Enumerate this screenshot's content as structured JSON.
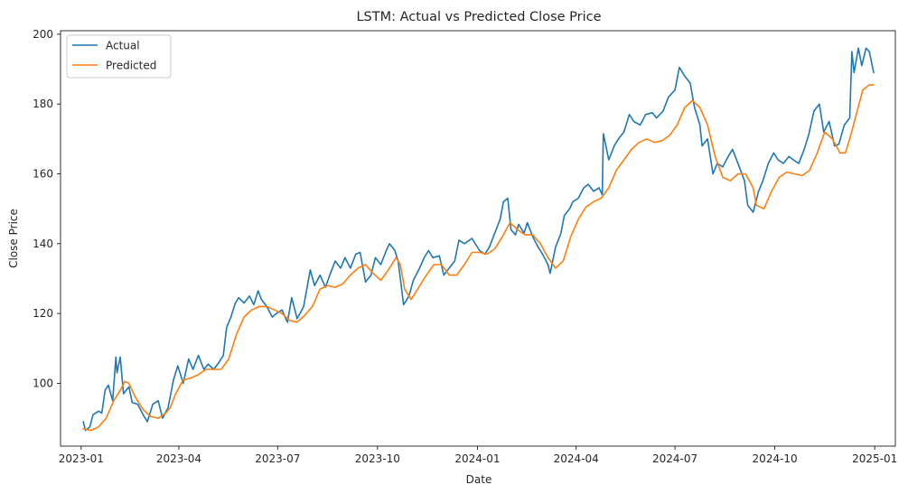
{
  "chart_data": {
    "type": "line",
    "title": "LSTM: Actual vs Predicted Close Price",
    "xlabel": "Date",
    "ylabel": "Close Price",
    "x_ticks": [
      "2023-01",
      "2023-04",
      "2023-07",
      "2023-10",
      "2024-01",
      "2024-04",
      "2024-07",
      "2024-10",
      "2025-01"
    ],
    "y_ticks": [
      100,
      120,
      140,
      160,
      180,
      200
    ],
    "xlim": [
      "2022-12-13",
      "2025-01-20"
    ],
    "ylim": [
      82,
      201
    ],
    "grid": false,
    "legend": {
      "placement": "upper-left"
    },
    "series": [
      {
        "name": "Actual",
        "color": "#1f77b4",
        "points": [
          [
            "2023-01-03",
            89
          ],
          [
            "2023-01-05",
            86.5
          ],
          [
            "2023-01-09",
            87.5
          ],
          [
            "2023-01-12",
            91
          ],
          [
            "2023-01-17",
            92
          ],
          [
            "2023-01-20",
            91.5
          ],
          [
            "2023-01-23",
            98
          ],
          [
            "2023-01-26",
            99.5
          ],
          [
            "2023-01-30",
            95
          ],
          [
            "2023-02-02",
            107.5
          ],
          [
            "2023-02-03",
            103
          ],
          [
            "2023-02-06",
            107.5
          ],
          [
            "2023-02-09",
            97
          ],
          [
            "2023-02-14",
            99
          ],
          [
            "2023-02-17",
            94.5
          ],
          [
            "2023-02-22",
            94
          ],
          [
            "2023-02-28",
            90.5
          ],
          [
            "2023-03-03",
            89
          ],
          [
            "2023-03-08",
            94
          ],
          [
            "2023-03-13",
            95
          ],
          [
            "2023-03-17",
            90
          ],
          [
            "2023-03-22",
            93
          ],
          [
            "2023-03-27",
            101
          ],
          [
            "2023-03-31",
            105
          ],
          [
            "2023-04-05",
            100
          ],
          [
            "2023-04-10",
            107
          ],
          [
            "2023-04-14",
            104
          ],
          [
            "2023-04-19",
            108
          ],
          [
            "2023-04-24",
            104
          ],
          [
            "2023-04-28",
            105.5
          ],
          [
            "2023-05-03",
            104
          ],
          [
            "2023-05-08",
            106
          ],
          [
            "2023-05-12",
            108
          ],
          [
            "2023-05-15",
            116
          ],
          [
            "2023-05-19",
            119
          ],
          [
            "2023-05-23",
            123
          ],
          [
            "2023-05-26",
            124.5
          ],
          [
            "2023-05-31",
            123
          ],
          [
            "2023-06-05",
            125
          ],
          [
            "2023-06-09",
            122.5
          ],
          [
            "2023-06-13",
            126.5
          ],
          [
            "2023-06-16",
            124
          ],
          [
            "2023-06-21",
            122
          ],
          [
            "2023-06-26",
            119
          ],
          [
            "2023-06-30",
            120
          ],
          [
            "2023-07-05",
            121
          ],
          [
            "2023-07-10",
            117.5
          ],
          [
            "2023-07-14",
            124.5
          ],
          [
            "2023-07-19",
            118.5
          ],
          [
            "2023-07-25",
            122
          ],
          [
            "2023-07-31",
            132.5
          ],
          [
            "2023-08-04",
            128
          ],
          [
            "2023-08-09",
            131
          ],
          [
            "2023-08-14",
            127.5
          ],
          [
            "2023-08-18",
            131
          ],
          [
            "2023-08-23",
            135
          ],
          [
            "2023-08-28",
            133
          ],
          [
            "2023-09-01",
            136
          ],
          [
            "2023-09-06",
            133
          ],
          [
            "2023-09-11",
            137
          ],
          [
            "2023-09-15",
            137.5
          ],
          [
            "2023-09-20",
            129
          ],
          [
            "2023-09-25",
            131
          ],
          [
            "2023-09-29",
            136
          ],
          [
            "2023-10-04",
            134
          ],
          [
            "2023-10-09",
            138
          ],
          [
            "2023-10-12",
            140
          ],
          [
            "2023-10-17",
            138
          ],
          [
            "2023-10-20",
            135
          ],
          [
            "2023-10-25",
            122.5
          ],
          [
            "2023-10-30",
            125
          ],
          [
            "2023-11-03",
            129.5
          ],
          [
            "2023-11-08",
            132.5
          ],
          [
            "2023-11-13",
            136
          ],
          [
            "2023-11-17",
            138
          ],
          [
            "2023-11-21",
            136
          ],
          [
            "2023-11-27",
            136.5
          ],
          [
            "2023-12-01",
            131
          ],
          [
            "2023-12-06",
            133
          ],
          [
            "2023-12-11",
            135
          ],
          [
            "2023-12-15",
            141
          ],
          [
            "2023-12-20",
            140
          ],
          [
            "2023-12-27",
            141.5
          ],
          [
            "2024-01-03",
            138
          ],
          [
            "2024-01-08",
            137
          ],
          [
            "2024-01-12",
            139
          ],
          [
            "2024-01-17",
            143
          ],
          [
            "2024-01-22",
            147
          ],
          [
            "2024-01-25",
            152
          ],
          [
            "2024-01-29",
            153
          ],
          [
            "2024-02-01",
            144
          ],
          [
            "2024-02-05",
            142.5
          ],
          [
            "2024-02-08",
            145.5
          ],
          [
            "2024-02-13",
            143
          ],
          [
            "2024-02-16",
            146
          ],
          [
            "2024-02-21",
            142
          ],
          [
            "2024-02-26",
            139
          ],
          [
            "2024-03-01",
            137
          ],
          [
            "2024-03-06",
            134
          ],
          [
            "2024-03-08",
            131.5
          ],
          [
            "2024-03-13",
            139
          ],
          [
            "2024-03-18",
            143
          ],
          [
            "2024-03-21",
            148
          ],
          [
            "2024-03-26",
            150
          ],
          [
            "2024-03-29",
            152
          ],
          [
            "2024-04-03",
            153
          ],
          [
            "2024-04-08",
            156
          ],
          [
            "2024-04-12",
            157
          ],
          [
            "2024-04-17",
            155
          ],
          [
            "2024-04-22",
            156
          ],
          [
            "2024-04-25",
            154
          ],
          [
            "2024-04-26",
            171.5
          ],
          [
            "2024-05-01",
            164
          ],
          [
            "2024-05-06",
            168
          ],
          [
            "2024-05-10",
            170
          ],
          [
            "2024-05-15",
            172
          ],
          [
            "2024-05-20",
            177
          ],
          [
            "2024-05-24",
            175
          ],
          [
            "2024-05-30",
            174
          ],
          [
            "2024-06-04",
            177
          ],
          [
            "2024-06-10",
            177.5
          ],
          [
            "2024-06-14",
            176
          ],
          [
            "2024-06-20",
            178
          ],
          [
            "2024-06-25",
            182
          ],
          [
            "2024-07-01",
            184
          ],
          [
            "2024-07-05",
            190.5
          ],
          [
            "2024-07-10",
            188
          ],
          [
            "2024-07-15",
            186
          ],
          [
            "2024-07-19",
            179
          ],
          [
            "2024-07-24",
            174
          ],
          [
            "2024-07-26",
            168
          ],
          [
            "2024-07-31",
            170
          ],
          [
            "2024-08-05",
            160
          ],
          [
            "2024-08-09",
            163
          ],
          [
            "2024-08-14",
            162
          ],
          [
            "2024-08-19",
            165
          ],
          [
            "2024-08-23",
            167
          ],
          [
            "2024-08-28",
            163
          ],
          [
            "2024-09-03",
            158
          ],
          [
            "2024-09-06",
            151
          ],
          [
            "2024-09-11",
            149
          ],
          [
            "2024-09-16",
            155
          ],
          [
            "2024-09-20",
            158
          ],
          [
            "2024-09-25",
            163
          ],
          [
            "2024-09-30",
            166
          ],
          [
            "2024-10-04",
            164
          ],
          [
            "2024-10-09",
            163
          ],
          [
            "2024-10-14",
            165
          ],
          [
            "2024-10-18",
            164
          ],
          [
            "2024-10-23",
            163
          ],
          [
            "2024-10-28",
            167
          ],
          [
            "2024-11-01",
            171
          ],
          [
            "2024-11-06",
            178
          ],
          [
            "2024-11-11",
            180
          ],
          [
            "2024-11-15",
            172
          ],
          [
            "2024-11-20",
            175
          ],
          [
            "2024-11-25",
            168
          ],
          [
            "2024-11-29",
            168.5
          ],
          [
            "2024-12-04",
            174
          ],
          [
            "2024-12-09",
            176
          ],
          [
            "2024-12-11",
            195
          ],
          [
            "2024-12-13",
            189
          ],
          [
            "2024-12-17",
            196
          ],
          [
            "2024-12-20",
            191
          ],
          [
            "2024-12-24",
            196
          ],
          [
            "2024-12-27",
            195
          ],
          [
            "2024-12-31",
            189
          ]
        ]
      },
      {
        "name": "Predicted",
        "color": "#ff7f0e",
        "points": [
          [
            "2023-01-03",
            87
          ],
          [
            "2023-01-10",
            86.5
          ],
          [
            "2023-01-17",
            87.5
          ],
          [
            "2023-01-24",
            90
          ],
          [
            "2023-01-31",
            95
          ],
          [
            "2023-02-07",
            98.5
          ],
          [
            "2023-02-10",
            100.5
          ],
          [
            "2023-02-14",
            100
          ],
          [
            "2023-02-20",
            96
          ],
          [
            "2023-02-27",
            92.5
          ],
          [
            "2023-03-06",
            90.5
          ],
          [
            "2023-03-13",
            90
          ],
          [
            "2023-03-20",
            91.5
          ],
          [
            "2023-03-24",
            93
          ],
          [
            "2023-03-29",
            97
          ],
          [
            "2023-04-05",
            101
          ],
          [
            "2023-04-12",
            101.5
          ],
          [
            "2023-04-19",
            102.5
          ],
          [
            "2023-04-26",
            104
          ],
          [
            "2023-05-03",
            104
          ],
          [
            "2023-05-10",
            104
          ],
          [
            "2023-05-17",
            107
          ],
          [
            "2023-05-24",
            114
          ],
          [
            "2023-05-31",
            119
          ],
          [
            "2023-06-07",
            121
          ],
          [
            "2023-06-14",
            122
          ],
          [
            "2023-06-21",
            122
          ],
          [
            "2023-06-28",
            121
          ],
          [
            "2023-07-05",
            120
          ],
          [
            "2023-07-12",
            118
          ],
          [
            "2023-07-19",
            117.5
          ],
          [
            "2023-07-26",
            119.5
          ],
          [
            "2023-08-02",
            122
          ],
          [
            "2023-08-09",
            127
          ],
          [
            "2023-08-16",
            128
          ],
          [
            "2023-08-23",
            127.5
          ],
          [
            "2023-08-30",
            128.5
          ],
          [
            "2023-09-06",
            131
          ],
          [
            "2023-09-13",
            133
          ],
          [
            "2023-09-20",
            134
          ],
          [
            "2023-09-27",
            131.5
          ],
          [
            "2023-10-04",
            129.5
          ],
          [
            "2023-10-11",
            132.5
          ],
          [
            "2023-10-18",
            136
          ],
          [
            "2023-10-22",
            134
          ],
          [
            "2023-10-26",
            127
          ],
          [
            "2023-11-01",
            124
          ],
          [
            "2023-11-08",
            127.5
          ],
          [
            "2023-11-15",
            131
          ],
          [
            "2023-11-22",
            134
          ],
          [
            "2023-11-29",
            134
          ],
          [
            "2023-12-06",
            131
          ],
          [
            "2023-12-13",
            131
          ],
          [
            "2023-12-20",
            134
          ],
          [
            "2023-12-27",
            137.5
          ],
          [
            "2024-01-03",
            137.5
          ],
          [
            "2024-01-10",
            137
          ],
          [
            "2024-01-17",
            138.5
          ],
          [
            "2024-01-24",
            142
          ],
          [
            "2024-01-31",
            146
          ],
          [
            "2024-02-07",
            144
          ],
          [
            "2024-02-14",
            142.5
          ],
          [
            "2024-02-21",
            142.5
          ],
          [
            "2024-02-28",
            140
          ],
          [
            "2024-03-06",
            136
          ],
          [
            "2024-03-13",
            133
          ],
          [
            "2024-03-20",
            135
          ],
          [
            "2024-03-27",
            142
          ],
          [
            "2024-04-03",
            147
          ],
          [
            "2024-04-10",
            150.5
          ],
          [
            "2024-04-17",
            152
          ],
          [
            "2024-04-24",
            153
          ],
          [
            "2024-05-01",
            156
          ],
          [
            "2024-05-08",
            161
          ],
          [
            "2024-05-15",
            164
          ],
          [
            "2024-05-22",
            167
          ],
          [
            "2024-05-29",
            169
          ],
          [
            "2024-06-05",
            170
          ],
          [
            "2024-06-12",
            169
          ],
          [
            "2024-06-19",
            169.5
          ],
          [
            "2024-06-26",
            171
          ],
          [
            "2024-07-03",
            174
          ],
          [
            "2024-07-10",
            179
          ],
          [
            "2024-07-17",
            181
          ],
          [
            "2024-07-24",
            179
          ],
          [
            "2024-07-31",
            174
          ],
          [
            "2024-08-07",
            165
          ],
          [
            "2024-08-14",
            159
          ],
          [
            "2024-08-21",
            158
          ],
          [
            "2024-08-28",
            160
          ],
          [
            "2024-09-04",
            160
          ],
          [
            "2024-09-11",
            156
          ],
          [
            "2024-09-14",
            151
          ],
          [
            "2024-09-21",
            150
          ],
          [
            "2024-09-28",
            155
          ],
          [
            "2024-10-05",
            159
          ],
          [
            "2024-10-12",
            160.5
          ],
          [
            "2024-10-19",
            160
          ],
          [
            "2024-10-26",
            159.5
          ],
          [
            "2024-11-02",
            161
          ],
          [
            "2024-11-09",
            166
          ],
          [
            "2024-11-16",
            172
          ],
          [
            "2024-11-23",
            170
          ],
          [
            "2024-11-30",
            166
          ],
          [
            "2024-12-05",
            166
          ],
          [
            "2024-12-09",
            170
          ],
          [
            "2024-12-15",
            177
          ],
          [
            "2024-12-21",
            184
          ],
          [
            "2024-12-27",
            185.5
          ],
          [
            "2024-12-31",
            185.5
          ]
        ]
      }
    ]
  }
}
